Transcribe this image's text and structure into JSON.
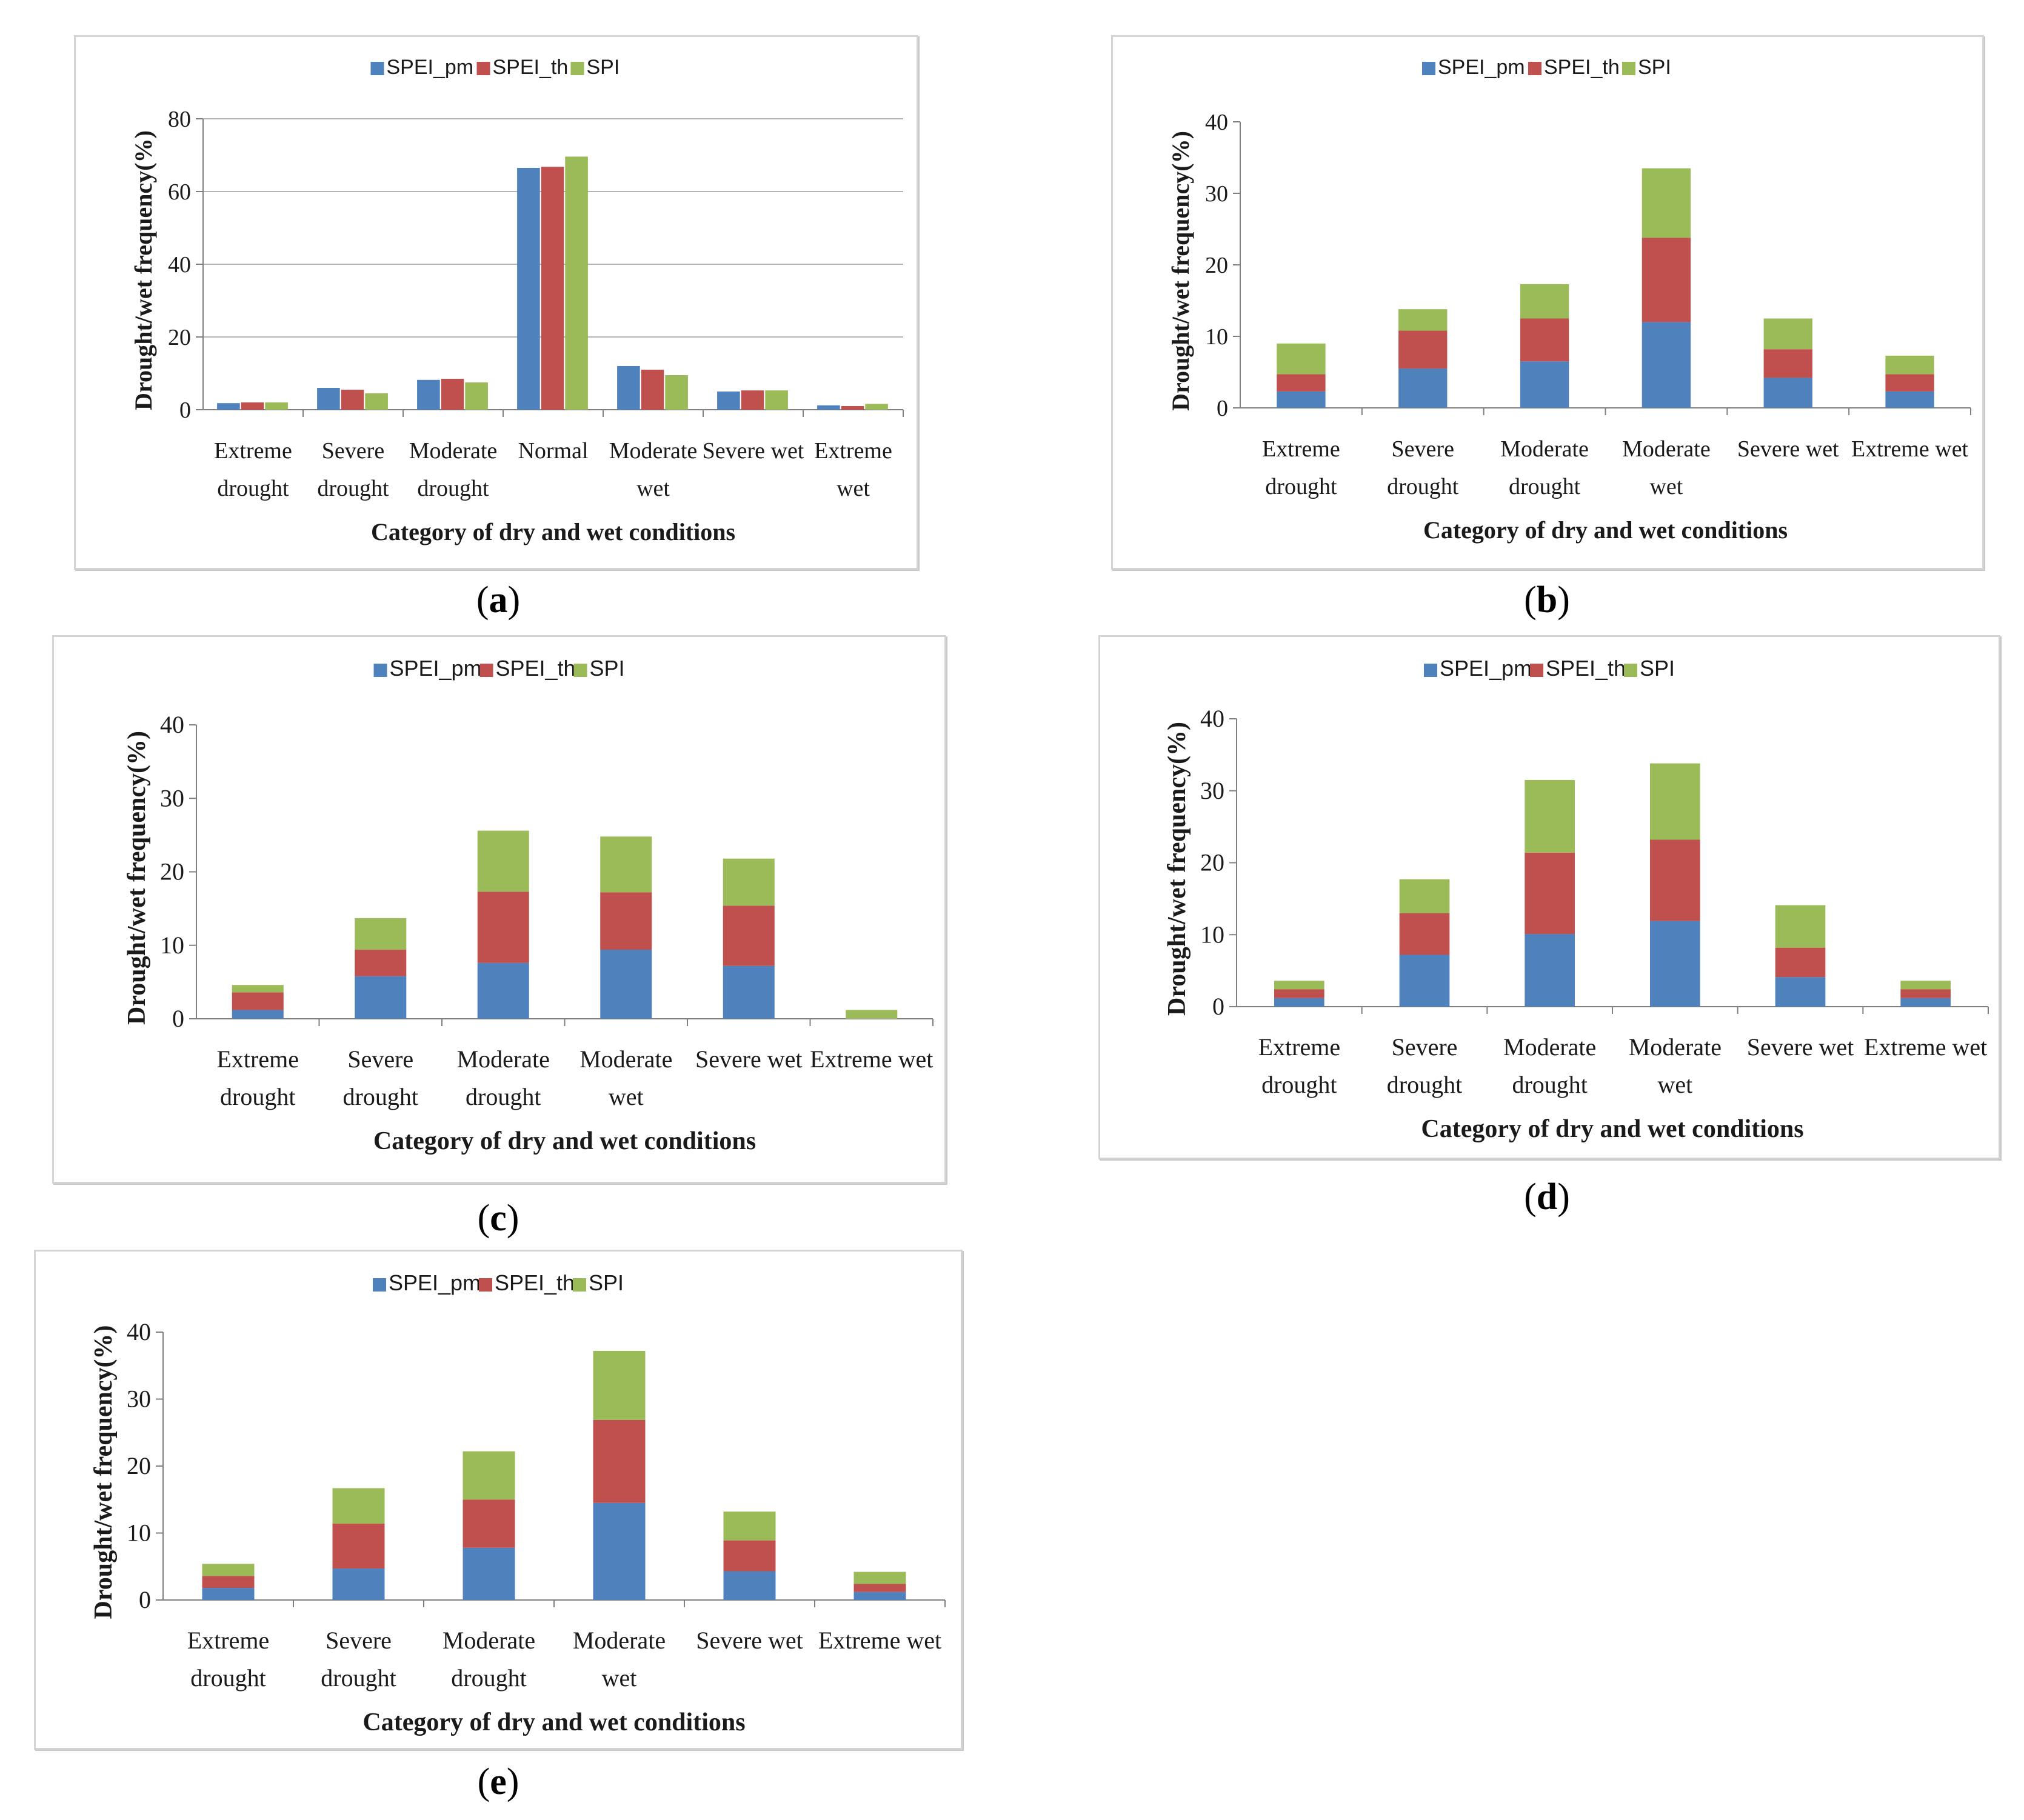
{
  "colors": {
    "SPEI_pm": "#4f81bd",
    "SPEI_th": "#c0504d",
    "SPI": "#9bbb59",
    "grid": "#b4b4b4",
    "axis": "#808080"
  },
  "captions": {
    "a": "a",
    "b": "b",
    "c": "c",
    "d": "d",
    "e": "e"
  },
  "chart_data": [
    {
      "panel": "a",
      "type": "bar",
      "stacked": false,
      "categories": [
        [
          "Extreme",
          "drought"
        ],
        [
          "Severe",
          "drought"
        ],
        [
          "Moderate",
          "drought"
        ],
        [
          "Normal"
        ],
        [
          "Moderate",
          "wet"
        ],
        [
          "Severe wet"
        ],
        [
          "Extreme",
          "wet"
        ]
      ],
      "series": [
        {
          "name": "SPEI_pm",
          "values": [
            1.8,
            6.0,
            8.2,
            66.5,
            12.0,
            5.0,
            1.2
          ]
        },
        {
          "name": "SPEI_th",
          "values": [
            2.0,
            5.5,
            8.5,
            66.8,
            11.0,
            5.3,
            1.0
          ]
        },
        {
          "name": "SPI",
          "values": [
            2.0,
            4.5,
            7.5,
            69.6,
            9.5,
            5.3,
            1.6
          ]
        }
      ],
      "xlabel": "Category of dry and wet conditions",
      "ylabel": "Drought/wet frequency(%)",
      "ylim": [
        0,
        80
      ],
      "yticks": [
        0,
        20,
        40,
        60,
        80
      ],
      "grid": true,
      "legend": "top-center"
    },
    {
      "panel": "b",
      "type": "bar",
      "stacked": true,
      "categories": [
        [
          "Extreme",
          "drought"
        ],
        [
          "Severe",
          "drought"
        ],
        [
          "Moderate",
          "drought"
        ],
        [
          "Moderate",
          "wet"
        ],
        [
          "Severe wet"
        ],
        [
          "Extreme wet"
        ]
      ],
      "series": [
        {
          "name": "SPEI_pm",
          "values": [
            2.3,
            5.5,
            6.5,
            12.0,
            4.2,
            2.3
          ]
        },
        {
          "name": "SPEI_th",
          "values": [
            2.4,
            5.3,
            6.0,
            11.8,
            4.0,
            2.4
          ]
        },
        {
          "name": "SPI",
          "values": [
            4.3,
            3.0,
            4.8,
            9.7,
            4.3,
            2.6
          ]
        }
      ],
      "xlabel": "Category of dry and wet conditions",
      "ylabel": "Drought/wet frequency(%)",
      "ylim": [
        0,
        40
      ],
      "yticks": [
        0,
        10,
        20,
        30,
        40
      ],
      "grid": false,
      "legend": "top-center"
    },
    {
      "panel": "c",
      "type": "bar",
      "stacked": true,
      "categories": [
        [
          "Extreme",
          "drought"
        ],
        [
          "Severe",
          "drought"
        ],
        [
          "Moderate",
          "drought"
        ],
        [
          "Moderate",
          "wet"
        ],
        [
          "Severe wet"
        ],
        [
          "Extreme wet"
        ]
      ],
      "series": [
        {
          "name": "SPEI_pm",
          "values": [
            1.2,
            5.8,
            7.6,
            9.4,
            7.2,
            0
          ]
        },
        {
          "name": "SPEI_th",
          "values": [
            2.4,
            3.6,
            9.7,
            7.8,
            8.2,
            0
          ]
        },
        {
          "name": "SPI",
          "values": [
            1.0,
            4.3,
            8.3,
            7.6,
            6.4,
            1.2
          ]
        }
      ],
      "xlabel": "Category of dry and wet conditions",
      "ylabel": "Drought/wet frequency(%)",
      "ylim": [
        0,
        40
      ],
      "yticks": [
        0,
        10,
        20,
        30,
        40
      ],
      "grid": false,
      "legend": "top-center"
    },
    {
      "panel": "d",
      "type": "bar",
      "stacked": true,
      "categories": [
        [
          "Extreme",
          "drought"
        ],
        [
          "Severe",
          "drought"
        ],
        [
          "Moderate",
          "drought"
        ],
        [
          "Moderate",
          "wet"
        ],
        [
          "Severe wet"
        ],
        [
          "Extreme wet"
        ]
      ],
      "series": [
        {
          "name": "SPEI_pm",
          "values": [
            1.2,
            7.2,
            10.1,
            11.9,
            4.1,
            1.2
          ]
        },
        {
          "name": "SPEI_th",
          "values": [
            1.2,
            5.8,
            11.3,
            11.3,
            4.1,
            1.2
          ]
        },
        {
          "name": "SPI",
          "values": [
            1.2,
            4.7,
            10.1,
            10.6,
            5.9,
            1.2
          ]
        }
      ],
      "xlabel": "Category of dry and wet conditions",
      "ylabel": "Drought/wet frequency(%)",
      "ylim": [
        0,
        40
      ],
      "yticks": [
        0,
        10,
        20,
        30,
        40
      ],
      "grid": false,
      "legend": "top-center"
    },
    {
      "panel": "e",
      "type": "bar",
      "stacked": true,
      "categories": [
        [
          "Extreme",
          "drought"
        ],
        [
          "Severe",
          "drought"
        ],
        [
          "Moderate",
          "drought"
        ],
        [
          "Moderate",
          "wet"
        ],
        [
          "Severe wet"
        ],
        [
          "Extreme wet"
        ]
      ],
      "series": [
        {
          "name": "SPEI_pm",
          "values": [
            1.8,
            4.7,
            7.8,
            14.5,
            4.3,
            1.2
          ]
        },
        {
          "name": "SPEI_th",
          "values": [
            1.8,
            6.7,
            7.2,
            12.4,
            4.6,
            1.2
          ]
        },
        {
          "name": "SPI",
          "values": [
            1.8,
            5.3,
            7.2,
            10.3,
            4.3,
            1.8
          ]
        }
      ],
      "xlabel": "Category of dry and wet conditions",
      "ylabel": "Drought/wet frequency(%)",
      "ylim": [
        0,
        40
      ],
      "yticks": [
        0,
        10,
        20,
        30,
        40
      ],
      "grid": false,
      "legend": "top-center"
    }
  ]
}
